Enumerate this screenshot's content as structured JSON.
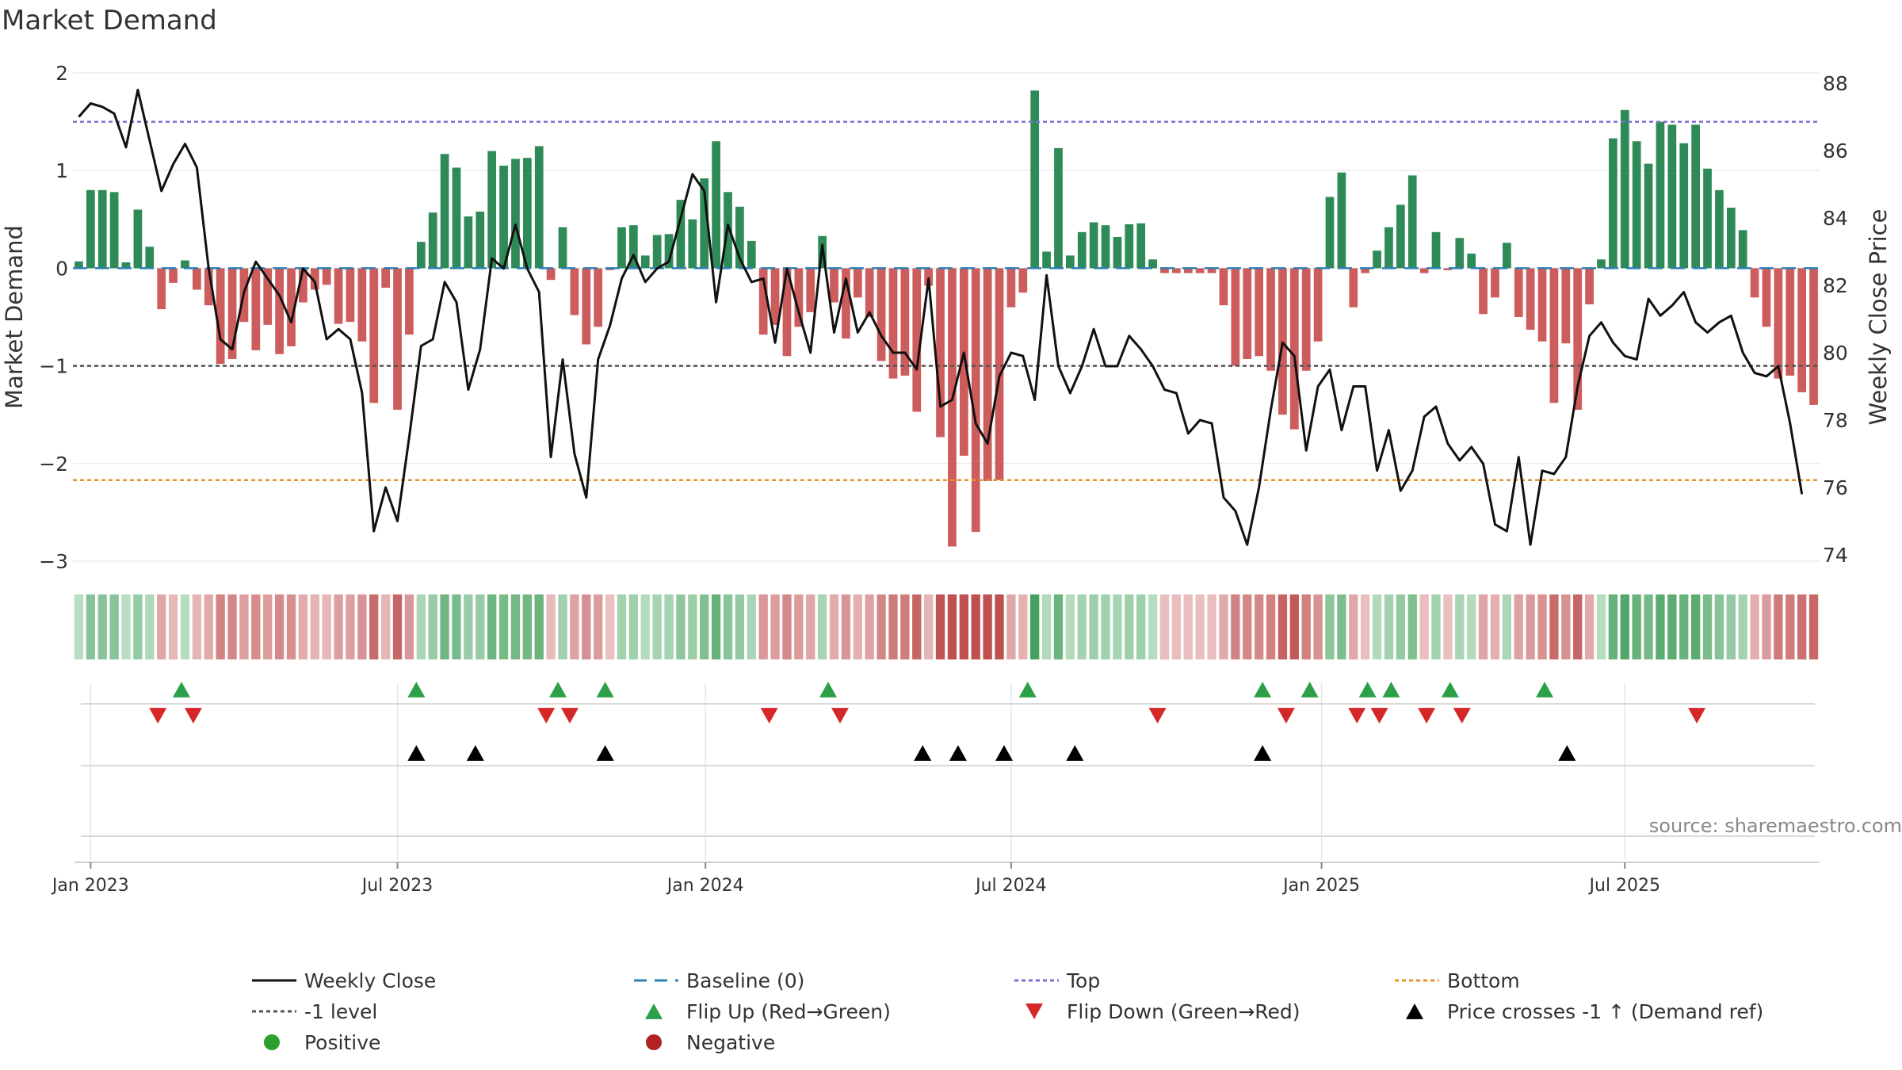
{
  "chart_data": {
    "type": "bar",
    "title": "Market Demand",
    "ylabel_left": "Market Demand",
    "ylabel_right": "Weekly Close Price",
    "ylim_left": [
      -3,
      2
    ],
    "yticks_left": [
      2,
      1,
      0,
      -1,
      -2,
      -3
    ],
    "ytick_labels_left": [
      "2",
      "1",
      "0",
      "−1",
      "−2",
      "−3"
    ],
    "ylim_right": [
      74,
      88
    ],
    "yticks_right": [
      88,
      86,
      84,
      82,
      80,
      78,
      76,
      74
    ],
    "x_start_week": -1,
    "x_ticks": [
      {
        "label": "Jan 2023",
        "week": 0
      },
      {
        "label": "Jul 2023",
        "week": 26
      },
      {
        "label": "Jan 2024",
        "week": 52.1
      },
      {
        "label": "Jul 2024",
        "week": 78
      },
      {
        "label": "Jan 2025",
        "week": 104.3
      },
      {
        "label": "Jul 2025",
        "week": 130
      }
    ],
    "reference_lines": {
      "top": 1.5,
      "minus_one": -1,
      "bottom": -2.17,
      "baseline": 0
    },
    "series": [
      {
        "name": "Market Demand",
        "values": [
          0.07,
          0.8,
          0.8,
          0.78,
          0.06,
          0.6,
          0.22,
          -0.42,
          -0.15,
          0.08,
          -0.22,
          -0.38,
          -0.98,
          -0.93,
          -0.55,
          -0.84,
          -0.58,
          -0.88,
          -0.8,
          -0.35,
          -0.22,
          -0.17,
          -0.57,
          -0.55,
          -0.75,
          -1.38,
          -0.2,
          -1.45,
          -0.68,
          0.27,
          0.57,
          1.17,
          1.03,
          0.53,
          0.58,
          1.2,
          1.05,
          1.12,
          1.13,
          1.25,
          -0.12,
          0.42,
          -0.48,
          -0.78,
          -0.6,
          -0.02,
          0.42,
          0.44,
          0.13,
          0.34,
          0.35,
          0.7,
          0.5,
          0.92,
          1.3,
          0.78,
          0.63,
          0.28,
          -0.68,
          -0.58,
          -0.9,
          -0.6,
          -0.45,
          0.33,
          -0.35,
          -0.72,
          -0.3,
          -0.5,
          -0.95,
          -1.13,
          -1.1,
          -1.47,
          -0.18,
          -1.73,
          -2.85,
          -1.92,
          -2.7,
          -2.18,
          -2.17,
          -0.4,
          -0.25,
          1.82,
          0.17,
          1.23,
          0.13,
          0.37,
          0.47,
          0.44,
          0.32,
          0.45,
          0.46,
          0.09,
          -0.05,
          -0.05,
          -0.05,
          -0.05,
          -0.05,
          -0.38,
          -1.0,
          -0.93,
          -0.9,
          -1.05,
          -1.5,
          -1.65,
          -1.05,
          -0.75,
          0.73,
          0.98,
          -0.4,
          -0.05,
          0.18,
          0.42,
          0.65,
          0.95,
          -0.05,
          0.37,
          -0.02,
          0.31,
          0.15,
          -0.47,
          -0.3,
          0.26,
          -0.5,
          -0.63,
          -0.75,
          -1.38,
          -0.77,
          -1.45,
          -0.37,
          0.09,
          1.33,
          1.62,
          1.3,
          1.07,
          1.5,
          1.47,
          1.28,
          1.47,
          1.02,
          0.8,
          0.62,
          0.39,
          -0.3,
          -0.6,
          -1.13,
          -1.1,
          -1.27,
          -1.4
        ]
      },
      {
        "name": "Weekly Close",
        "axis": "right",
        "values": [
          87.0,
          87.4,
          87.3,
          87.1,
          86.1,
          87.8,
          86.3,
          84.8,
          85.6,
          86.2,
          85.5,
          82.5,
          80.4,
          80.1,
          81.8,
          82.7,
          82.2,
          81.7,
          80.9,
          82.5,
          82.1,
          80.4,
          80.7,
          80.4,
          78.8,
          74.7,
          76.0,
          75.0,
          77.5,
          80.2,
          80.4,
          82.1,
          81.5,
          78.9,
          80.1,
          82.8,
          82.5,
          83.8,
          82.5,
          81.8,
          76.9,
          79.8,
          77.0,
          75.7,
          79.8,
          80.8,
          82.2,
          82.9,
          82.1,
          82.5,
          82.7,
          84.0,
          85.3,
          84.8,
          81.5,
          83.8,
          82.8,
          82.1,
          82.2,
          80.3,
          82.5,
          81.2,
          80.0,
          83.2,
          80.6,
          82.2,
          80.6,
          81.2,
          80.5,
          80.0,
          80.0,
          79.5,
          82.2,
          78.4,
          78.6,
          80.0,
          77.9,
          77.3,
          79.3,
          80.0,
          79.9,
          78.6,
          82.3,
          79.6,
          78.8,
          79.6,
          80.7,
          79.6,
          79.6,
          80.5,
          80.1,
          79.6,
          78.9,
          78.8,
          77.6,
          78.0,
          77.9,
          75.7,
          75.3,
          74.3,
          76.0,
          78.3,
          80.3,
          79.9,
          77.1,
          79.0,
          79.5,
          77.7,
          79.0,
          79.0,
          76.5,
          77.7,
          75.9,
          76.5,
          78.1,
          78.4,
          77.3,
          76.8,
          77.2,
          76.7,
          74.9,
          74.7,
          76.9,
          74.3,
          76.5,
          76.4,
          76.9,
          79.0,
          80.5,
          80.9,
          80.3,
          79.9,
          79.8,
          81.6,
          81.1,
          81.4,
          81.8,
          80.9,
          80.6,
          80.9,
          81.1,
          80.0,
          79.4,
          79.3,
          79.6,
          77.9,
          75.8
        ]
      }
    ],
    "flip_up_weeks": [
      7.7,
      27.6,
      39.6,
      43.6,
      62.5,
      79.4,
      99.3,
      103.3,
      108.2,
      110.2,
      115.2,
      123.2
    ],
    "flip_down_weeks": [
      5.7,
      8.7,
      38.6,
      40.6,
      57.5,
      63.5,
      90.4,
      101.3,
      107.3,
      109.2,
      113.2,
      116.2,
      136.1
    ],
    "price_cross_weeks": [
      27.6,
      32.6,
      43.6,
      70.5,
      73.5,
      77.4,
      83.4,
      99.3,
      125.1
    ],
    "legend": [
      {
        "label": "Weekly Close",
        "symbol": "line",
        "color": "#111111"
      },
      {
        "label": "Baseline (0)",
        "symbol": "dashed",
        "color": "#2f7fb5"
      },
      {
        "label": "Top",
        "symbol": "dotted",
        "color": "#7a6fd6"
      },
      {
        "label": "Bottom",
        "symbol": "dotted",
        "color": "#e8902a"
      },
      {
        "label": "-1 level",
        "symbol": "dotted",
        "color": "#555555"
      },
      {
        "label": "Flip Up (Red→Green)",
        "symbol": "triangle-up",
        "color": "#2ca048"
      },
      {
        "label": "Flip Down (Green→Red)",
        "symbol": "triangle-down",
        "color": "#d62728"
      },
      {
        "label": "Price crosses -1 ↑ (Demand ref)",
        "symbol": "triangle-up",
        "color": "#000000"
      },
      {
        "label": "Positive",
        "symbol": "circle",
        "color": "#2ca02c"
      },
      {
        "label": "Negative",
        "symbol": "circle",
        "color": "#b22222"
      }
    ],
    "source": "source: sharemaestro.com",
    "colors": {
      "positive_bar": "#2e8b57",
      "negative_bar": "#cd5c5c"
    }
  }
}
